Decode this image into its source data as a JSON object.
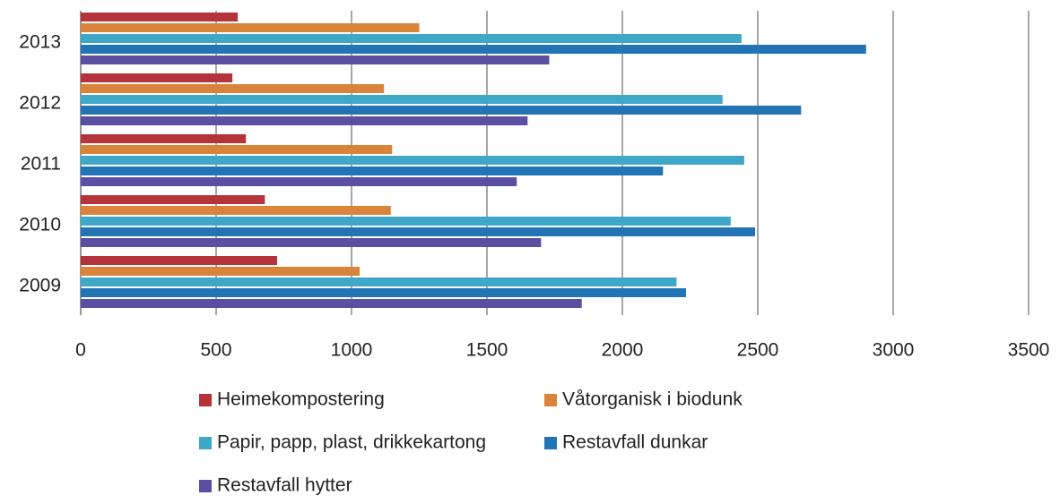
{
  "chart_data": {
    "type": "bar",
    "orientation": "horizontal",
    "categories": [
      "2013",
      "2012",
      "2011",
      "2010",
      "2009"
    ],
    "series": [
      {
        "name": "Heimekompostering",
        "color": "#b5343c",
        "values": [
          580,
          560,
          610,
          680,
          725
        ]
      },
      {
        "name": "Våtorganisk i biodunk",
        "color": "#d9843a",
        "values": [
          1250,
          1120,
          1150,
          1145,
          1030
        ]
      },
      {
        "name": "Papir, papp, plast, drikkekartong",
        "color": "#3fa8c9",
        "values": [
          2440,
          2370,
          2450,
          2400,
          2200
        ]
      },
      {
        "name": "Restavfall dunkar",
        "color": "#2374b5",
        "values": [
          2900,
          2660,
          2150,
          2490,
          2235
        ]
      },
      {
        "name": "Restavfall hytter",
        "color": "#5a4fa0",
        "values": [
          1730,
          1650,
          1610,
          1700,
          1850
        ]
      }
    ],
    "xlim": [
      0,
      3500
    ],
    "xticks": [
      0,
      500,
      1000,
      1500,
      2000,
      2500,
      3000,
      3500
    ],
    "grid": true,
    "legend": "bottom"
  }
}
